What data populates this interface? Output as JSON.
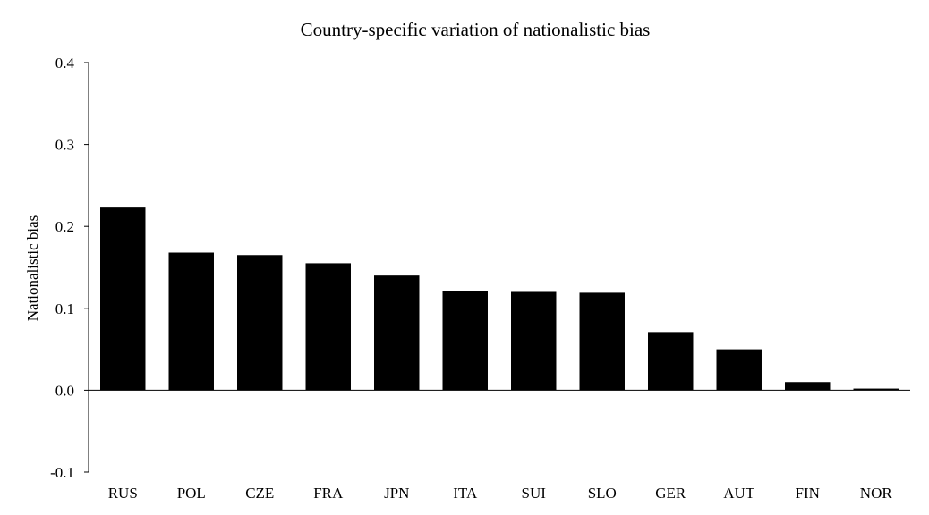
{
  "chart_data": {
    "type": "bar",
    "title": "Country-specific variation of nationalistic bias",
    "xlabel": "",
    "ylabel": "Nationalistic bias",
    "categories": [
      "RUS",
      "POL",
      "CZE",
      "FRA",
      "JPN",
      "ITA",
      "SUI",
      "SLO",
      "GER",
      "AUT",
      "FIN",
      "NOR"
    ],
    "values": [
      0.223,
      0.168,
      0.165,
      0.155,
      0.14,
      0.121,
      0.12,
      0.119,
      0.071,
      0.05,
      0.01,
      0.002
    ],
    "ylim": [
      -0.1,
      0.4
    ],
    "yticks": [
      -0.1,
      0.0,
      0.1,
      0.2,
      0.3,
      0.4
    ],
    "ytick_labels": [
      "-0.1",
      "0.0",
      "0.1",
      "0.2",
      "0.3",
      "0.4"
    ],
    "grid": false,
    "bar_color": "#000000"
  }
}
